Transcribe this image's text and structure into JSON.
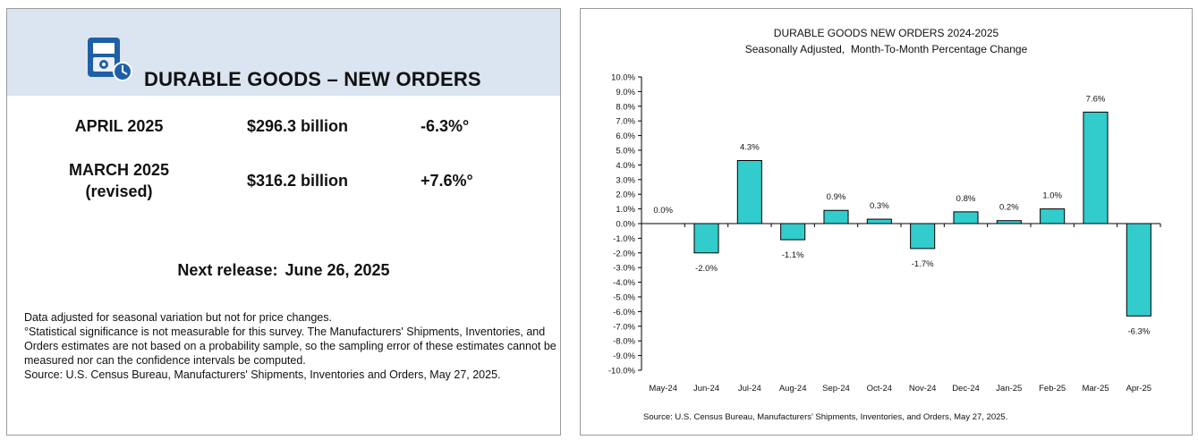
{
  "summary": {
    "title": "DURABLE GOODS – NEW ORDERS",
    "icon": "calculator-clock-icon",
    "colors": {
      "header_bg": "#dbe5f1",
      "icon_blue": "#1f5fa8"
    },
    "rows": [
      {
        "month_line1": "APRIL 2025",
        "month_line2": "",
        "amount": "$296.3 billion",
        "change": "-6.3%°"
      },
      {
        "month_line1": "MARCH 2025",
        "month_line2": "(revised)",
        "amount": "$316.2 billion",
        "change": "+7.6%°"
      }
    ],
    "next_release_label": "Next release:",
    "next_release_date": "June 26, 2025",
    "notes": [
      "Data adjusted for seasonal variation but not for price changes.",
      "°Statistical significance is not measurable for this survey.  The Manufacturers' Shipments, Inventories, and Orders estimates are not based on a probability sample, so the sampling error of these estimates cannot be measured nor can the confidence intervals be computed.",
      "Source: U.S. Census Bureau, Manufacturers' Shipments, Inventories and Orders, May 27, 2025."
    ]
  },
  "chart_data": {
    "type": "bar",
    "title": "DURABLE GOODS NEW ORDERS 2024-2025",
    "subtitle": "Seasonally Adjusted,  Month-To-Month Percentage Change",
    "categories": [
      "May-24",
      "Jun-24",
      "Jul-24",
      "Aug-24",
      "Sep-24",
      "Oct-24",
      "Nov-24",
      "Dec-24",
      "Jan-25",
      "Feb-25",
      "Mar-25",
      "Apr-25"
    ],
    "values": [
      0.0,
      -2.0,
      4.3,
      -1.1,
      0.9,
      0.3,
      -1.7,
      0.8,
      0.2,
      1.0,
      7.6,
      -6.3
    ],
    "data_labels": [
      "0.0%",
      "-2.0%",
      "4.3%",
      "-1.1%",
      "0.9%",
      "0.3%",
      "-1.7%",
      "0.8%",
      "0.2%",
      "1.0%",
      "7.6%",
      "-6.3%"
    ],
    "ylim": [
      -10,
      10
    ],
    "ytick_step": 1,
    "y_tick_labels": [
      "10.0%",
      "9.0%",
      "8.0%",
      "7.0%",
      "6.0%",
      "5.0%",
      "4.0%",
      "3.0%",
      "2.0%",
      "1.0%",
      "0.0%",
      "-1.0%",
      "-2.0%",
      "-3.0%",
      "-4.0%",
      "-5.0%",
      "-6.0%",
      "-7.0%",
      "-8.0%",
      "-9.0%",
      "-10.0%"
    ],
    "grid": false,
    "legend": "none",
    "bar_color": "#33cccc",
    "source": "Source: U.S. Census Bureau, Manufacturers' Shipments, Inventories, and Orders, May 27, 2025."
  }
}
